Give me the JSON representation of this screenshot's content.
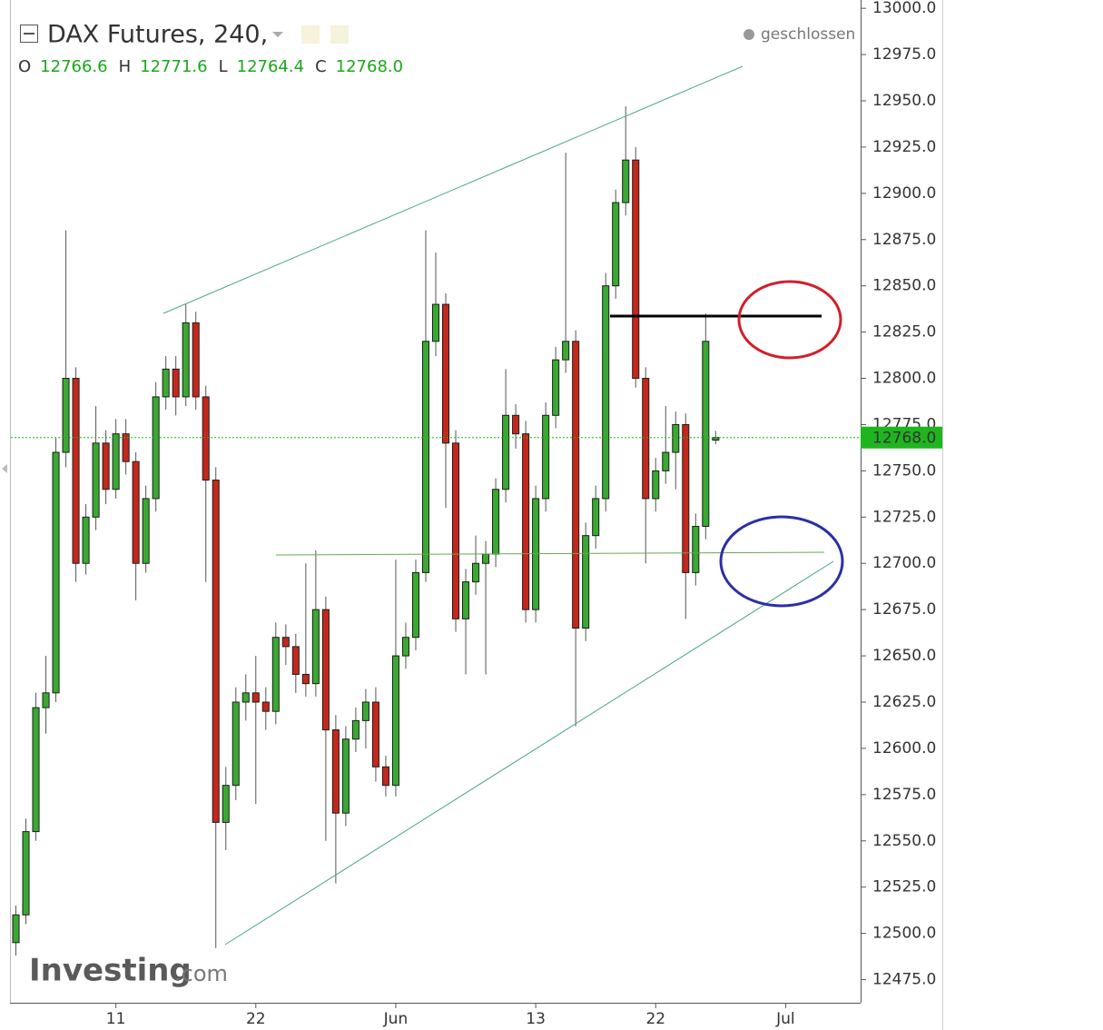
{
  "header": {
    "symbol": "DAX Futures, 240,",
    "status": "geschlossen",
    "ohlc": [
      {
        "key": "O",
        "value": "12766.6"
      },
      {
        "key": "H",
        "value": "12771.6"
      },
      {
        "key": "L",
        "value": "12764.4"
      },
      {
        "key": "C",
        "value": "12768.0"
      }
    ]
  },
  "watermark": {
    "brand": "Investing",
    "suffix": ".com"
  },
  "chart_data": {
    "type": "candlestick",
    "up_color": "#3aa932",
    "down_color": "#c3281c",
    "categories": [
      null,
      null,
      null,
      null,
      null,
      null,
      null,
      null,
      null,
      null,
      "11",
      null,
      null,
      null,
      null,
      null,
      null,
      null,
      null,
      null,
      null,
      null,
      null,
      null,
      "22",
      null,
      null,
      null,
      null,
      null,
      null,
      null,
      null,
      null,
      null,
      null,
      null,
      null,
      "Jun",
      null,
      null,
      null,
      null,
      null,
      null,
      null,
      null,
      null,
      null,
      null,
      null,
      null,
      "13",
      null,
      null,
      null,
      null,
      null,
      null,
      null,
      null,
      null,
      null,
      null,
      "22",
      null,
      null,
      null,
      null,
      null,
      null,
      null,
      null,
      null,
      null,
      null,
      null,
      "Jul",
      null,
      null,
      null,
      null,
      null,
      null,
      null
    ],
    "open": [
      12495,
      12510,
      12555,
      12622,
      12630,
      12760,
      12800,
      12700,
      12725,
      12765,
      12740,
      12770,
      12755,
      12700,
      12735,
      12790,
      12805,
      12790,
      12830,
      12790,
      12745,
      12560,
      12580,
      12625,
      12630,
      12625,
      12620,
      12660,
      12655,
      12640,
      12635,
      12675,
      12610,
      12565,
      12605,
      12615,
      12625,
      12590,
      12580,
      12650,
      12660,
      12695,
      12820,
      12840,
      12765,
      12670,
      12690,
      12700,
      12705,
      12740,
      12780,
      12770,
      12675,
      12735,
      12780,
      12810,
      12820,
      12665,
      12715,
      12735,
      12850,
      12895,
      12918,
      12800,
      12735,
      12750,
      12760,
      12775,
      12695,
      12720,
      12766.6,
      null,
      null,
      null,
      null,
      null,
      null,
      null,
      null,
      null,
      null,
      null,
      null,
      null,
      null
    ],
    "high": [
      12515,
      12562,
      12630,
      12650,
      12768,
      12880,
      12806,
      12732,
      12785,
      12772,
      12778,
      12778,
      12760,
      12742,
      12798,
      12812,
      12812,
      12840,
      12836,
      12796,
      12752,
      12590,
      12633,
      12640,
      12650,
      12633,
      12668,
      12667,
      12662,
      12700,
      12707,
      12682,
      12618,
      12612,
      12622,
      12632,
      12633,
      12596,
      12702,
      12668,
      12702,
      12880,
      12868,
      12846,
      12772,
      12697,
      12715,
      12712,
      12746,
      12805,
      12786,
      12777,
      12742,
      12787,
      12817,
      12922,
      12826,
      12722,
      12742,
      12857,
      12902,
      12947,
      12925,
      12806,
      12757,
      12785,
      12782,
      12781,
      12727,
      12835,
      12771.6,
      null,
      null,
      null,
      null,
      null,
      null,
      null,
      null,
      null,
      null,
      null,
      null,
      null,
      null
    ],
    "low": [
      12488,
      12505,
      12550,
      12608,
      12625,
      12752,
      12690,
      12694,
      12718,
      12732,
      12735,
      12748,
      12680,
      12695,
      12728,
      12783,
      12780,
      12785,
      12783,
      12690,
      12492,
      12545,
      12572,
      12615,
      12570,
      12610,
      12613,
      12645,
      12630,
      12628,
      12628,
      12550,
      12527,
      12558,
      12598,
      12600,
      12582,
      12574,
      12574,
      12643,
      12653,
      12690,
      12812,
      12730,
      12663,
      12640,
      12683,
      12640,
      12698,
      12733,
      12762,
      12668,
      12668,
      12728,
      12773,
      12803,
      12612,
      12658,
      12708,
      12728,
      12843,
      12888,
      12795,
      12700,
      12728,
      12743,
      12740,
      12670,
      12688,
      12713,
      12764.4,
      null,
      null,
      null,
      null,
      null,
      null,
      null,
      null,
      null,
      null,
      null,
      null,
      null,
      null
    ],
    "close": [
      12510,
      12555,
      12622,
      12630,
      12760,
      12800,
      12700,
      12725,
      12765,
      12740,
      12770,
      12755,
      12700,
      12735,
      12790,
      12805,
      12790,
      12830,
      12790,
      12745,
      12560,
      12580,
      12625,
      12630,
      12625,
      12620,
      12660,
      12655,
      12640,
      12635,
      12675,
      12610,
      12565,
      12605,
      12615,
      12625,
      12590,
      12580,
      12650,
      12660,
      12695,
      12820,
      12840,
      12765,
      12670,
      12690,
      12700,
      12705,
      12740,
      12780,
      12770,
      12675,
      12735,
      12780,
      12810,
      12820,
      12665,
      12715,
      12735,
      12850,
      12895,
      12918,
      12800,
      12735,
      12750,
      12760,
      12775,
      12695,
      12720,
      12820,
      12768,
      null,
      null,
      null,
      null,
      null,
      null,
      null,
      null,
      null,
      null,
      null,
      null,
      null,
      null
    ],
    "ylim": [
      12462.5,
      13004.5
    ],
    "yticks": [
      {
        "value": 12475,
        "label": "12475.0"
      },
      {
        "value": 12500,
        "label": "12500.0"
      },
      {
        "value": 12525,
        "label": "12525.0"
      },
      {
        "value": 12550,
        "label": "12550.0"
      },
      {
        "value": 12575,
        "label": "12575.0"
      },
      {
        "value": 12600,
        "label": "12600.0"
      },
      {
        "value": 12625,
        "label": "12625.0"
      },
      {
        "value": 12650,
        "label": "12650.0"
      },
      {
        "value": 12675,
        "label": "12675.0"
      },
      {
        "value": 12700,
        "label": "12700.0"
      },
      {
        "value": 12725,
        "label": "12725.0"
      },
      {
        "value": 12750,
        "label": "12750.0"
      },
      {
        "value": 12775,
        "label": "12775.0"
      },
      {
        "value": 12800,
        "label": "12800.0"
      },
      {
        "value": 12825,
        "label": "12825.0"
      },
      {
        "value": 12850,
        "label": "12850.0"
      },
      {
        "value": 12875,
        "label": "12875.0"
      },
      {
        "value": 12900,
        "label": "12900.0"
      },
      {
        "value": 12925,
        "label": "12925.0"
      },
      {
        "value": 12950,
        "label": "12950.0"
      },
      {
        "value": 12975,
        "label": "12975.0"
      },
      {
        "value": 13000,
        "label": "13000.0"
      }
    ],
    "last_price": {
      "value": 12768,
      "label": "12768.0"
    },
    "last_color": "#1fb51f"
  }
}
